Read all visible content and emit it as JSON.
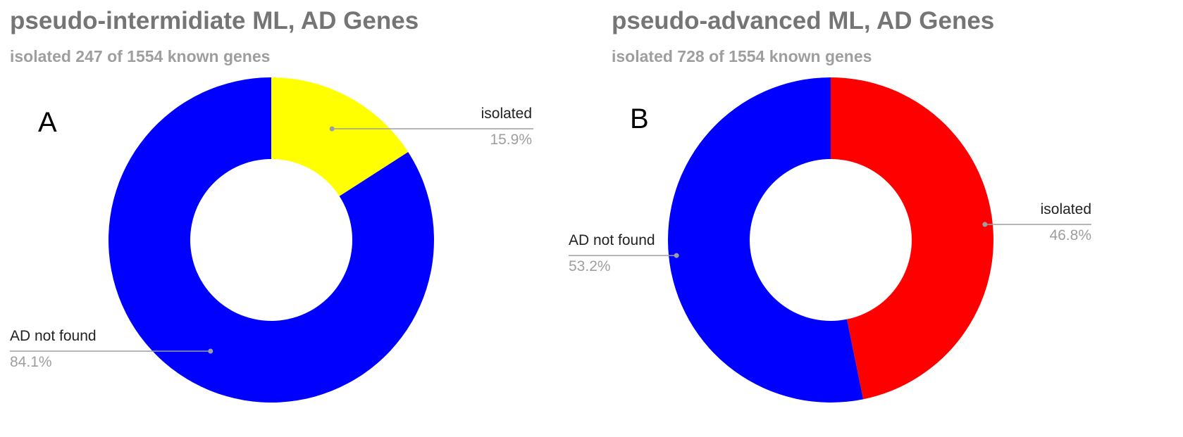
{
  "chart_data": [
    {
      "type": "pie",
      "donut": true,
      "panel_label": "A",
      "title": "pseudo-intermidiate ML, AD Genes",
      "subtitle": "isolated 247 of 1554 known genes",
      "slices": [
        {
          "label": "isolated",
          "value": 15.9,
          "display": "15.9%",
          "color": "#ffff00"
        },
        {
          "label": "AD not found",
          "value": 84.1,
          "display": "84.1%",
          "color": "#0000ff"
        }
      ]
    },
    {
      "type": "pie",
      "donut": true,
      "panel_label": "B",
      "title": "pseudo-advanced ML, AD Genes",
      "subtitle": "isolated 728 of 1554 known genes",
      "slices": [
        {
          "label": "isolated",
          "value": 46.8,
          "display": "46.8%",
          "color": "#ff0000"
        },
        {
          "label": "AD not found",
          "value": 53.2,
          "display": "53.2%",
          "color": "#0000ff"
        }
      ]
    }
  ]
}
